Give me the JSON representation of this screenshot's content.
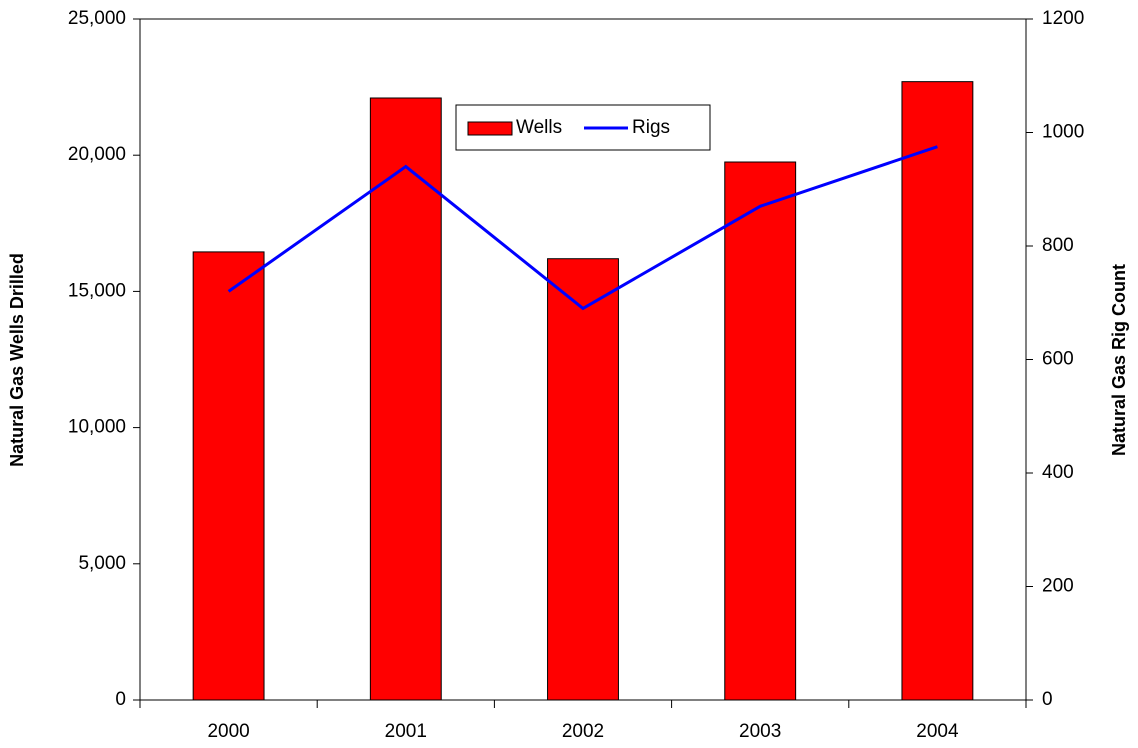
{
  "chart_data": {
    "type": "bar",
    "categories": [
      "2000",
      "2001",
      "2002",
      "2003",
      "2004"
    ],
    "series": [
      {
        "name": "Wells",
        "type": "bar",
        "color": "#ff0000",
        "values": [
          16450,
          22100,
          16200,
          19750,
          22700
        ]
      },
      {
        "name": "Rigs",
        "type": "line",
        "axis": "y2",
        "color": "#0000ff",
        "values": [
          720,
          940,
          690,
          870,
          975
        ]
      }
    ],
    "y_label": "Natural Gas Wells Drilled",
    "y2_label": "Natural Gas Rig Count",
    "ylim": [
      0,
      25000
    ],
    "yticks": [
      {
        "value": 0,
        "label": "0"
      },
      {
        "value": 5000,
        "label": "5,000"
      },
      {
        "value": 10000,
        "label": "10,000"
      },
      {
        "value": 15000,
        "label": "15,000"
      },
      {
        "value": 20000,
        "label": "20,000"
      },
      {
        "value": 25000,
        "label": "25,000"
      }
    ],
    "y2lim": [
      0,
      1200
    ],
    "y2ticks": [
      0,
      200,
      400,
      600,
      800,
      1000,
      1200
    ],
    "legend": "top-center"
  }
}
